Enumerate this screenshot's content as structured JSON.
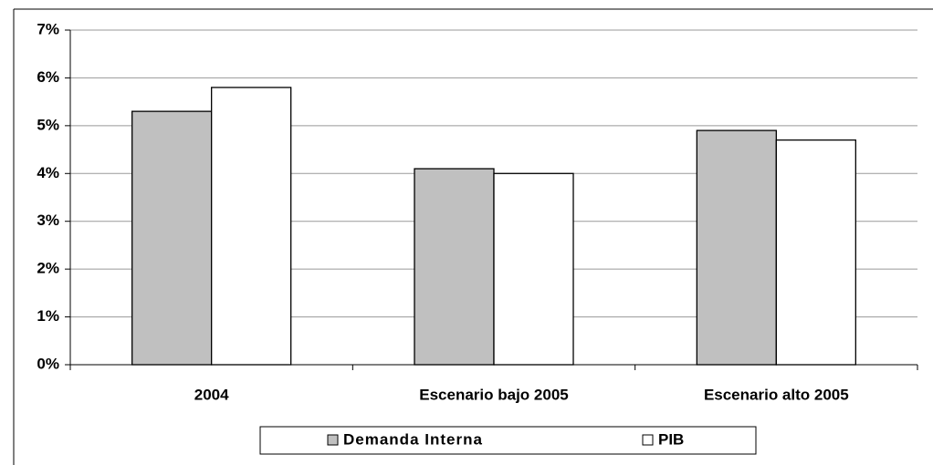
{
  "chart_data": {
    "type": "bar",
    "categories": [
      "2004",
      "Escenario bajo 2005",
      "Escenario alto 2005"
    ],
    "series": [
      {
        "name": "Demanda Interna",
        "color": "#c0c0c0",
        "values": [
          5.3,
          4.1,
          4.9
        ]
      },
      {
        "name": "PIB",
        "color": "#ffffff",
        "values": [
          5.8,
          4.0,
          4.7
        ]
      }
    ],
    "ylim": [
      0,
      7
    ],
    "yticks": [
      {
        "value": 0,
        "label": "0%"
      },
      {
        "value": 1,
        "label": "1%"
      },
      {
        "value": 2,
        "label": "2%"
      },
      {
        "value": 3,
        "label": "3%"
      },
      {
        "value": 4,
        "label": "4%"
      },
      {
        "value": 5,
        "label": "5%"
      },
      {
        "value": 6,
        "label": "6%"
      },
      {
        "value": 7,
        "label": "7%"
      }
    ],
    "grid": true,
    "legend": "bottom"
  }
}
